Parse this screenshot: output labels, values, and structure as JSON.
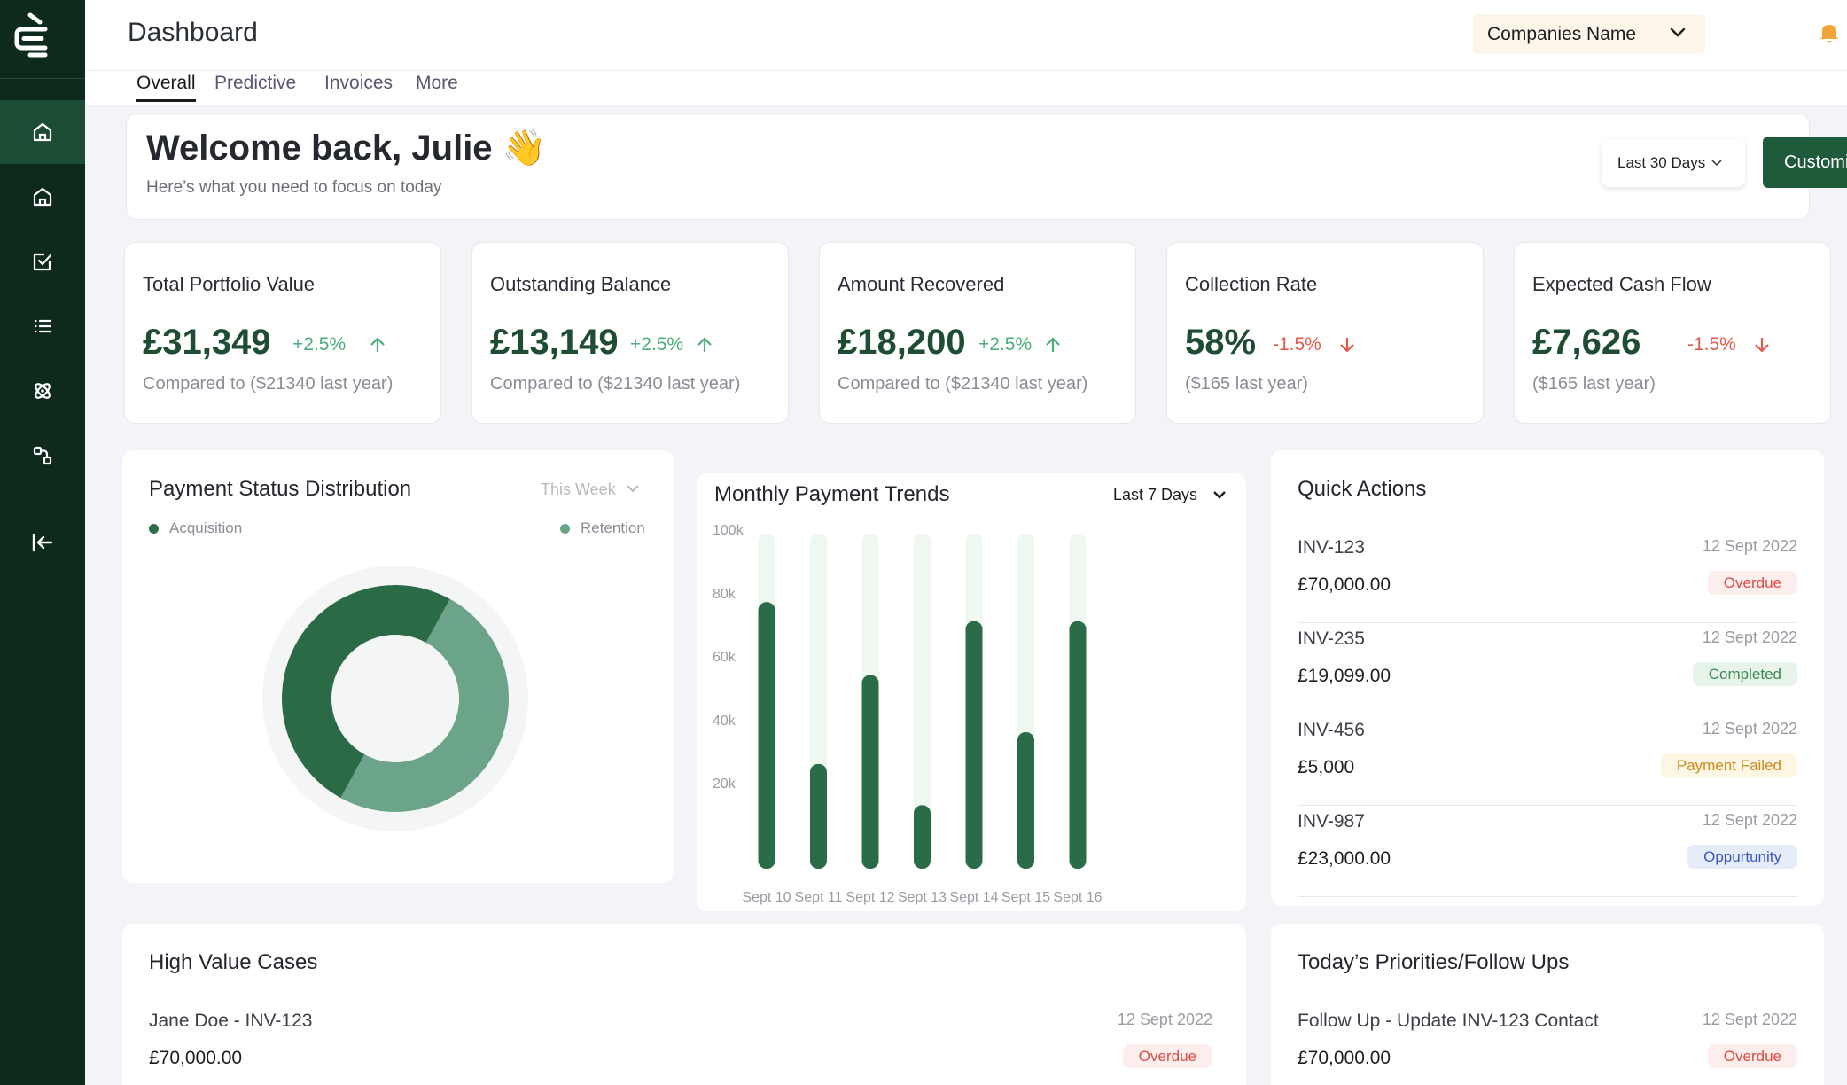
{
  "app": {
    "page_title": "Dashboard"
  },
  "header": {
    "company_select": "Companies Name"
  },
  "tabs": [
    {
      "label": "Overall",
      "active": true
    },
    {
      "label": "Predictive"
    },
    {
      "label": "Invoices"
    },
    {
      "label": "More"
    }
  ],
  "welcome": {
    "title": "Welcome back, Julie 👋",
    "subtitle": "Here’s what you need to focus on today",
    "range_button": "Last 30 Days",
    "customize_button": "Customize"
  },
  "kpis": [
    {
      "label": "Total Portfolio Value",
      "value": "£31,349",
      "change": "+2.5%",
      "direction": "up",
      "compare": "Compared to ($21340 last year)"
    },
    {
      "label": "Outstanding Balance",
      "value": "£13,149",
      "change": "+2.5%",
      "direction": "up",
      "compare": "Compared to ($21340 last year)"
    },
    {
      "label": "Amount Recovered",
      "value": "£18,200",
      "change": "+2.5%",
      "direction": "up",
      "compare": "Compared to ($21340 last year)"
    },
    {
      "label": "Collection Rate",
      "value": "58%",
      "change": "-1.5%",
      "direction": "down",
      "compare": "($165 last year)"
    },
    {
      "label": "Expected Cash Flow",
      "value": "£7,626",
      "change": "-1.5%",
      "direction": "down",
      "compare": "($165 last year)"
    }
  ],
  "payment_status": {
    "title": "Payment Status Distribution",
    "period": "This Week",
    "legend": [
      "Acquisition",
      "Retention"
    ],
    "series": [
      {
        "name": "Acquisition",
        "share": 0.5
      },
      {
        "name": "Retention",
        "share": 0.5
      }
    ]
  },
  "monthly_trends": {
    "title": "Monthly Payment Trends",
    "range": "Last 7 Days"
  },
  "chart_data": {
    "type": "bar",
    "categories": [
      "Sept 10",
      "Sept 11",
      "Sept 12",
      "Sept 13",
      "Sept 14",
      "Sept 15",
      "Sept 16"
    ],
    "values": [
      84,
      33,
      61,
      20,
      78,
      43,
      78
    ],
    "ytick_labels": [
      "100k",
      "80k",
      "60k",
      "40k",
      "20k"
    ],
    "ylim": [
      0,
      100
    ],
    "bar_color": "#2a6b48",
    "track_color": "#eef8f1"
  },
  "quick_actions": {
    "title": "Quick Actions",
    "items": [
      {
        "id": "INV-123",
        "date": "12 Sept 2022",
        "amount": "£70,000.00",
        "status": "Overdue",
        "status_kind": "overdue"
      },
      {
        "id": "INV-235",
        "date": "12 Sept 2022",
        "amount": "£19,099.00",
        "status": "Completed",
        "status_kind": "completed"
      },
      {
        "id": "INV-456",
        "date": "12 Sept 2022",
        "amount": "£5,000",
        "status": "Payment Failed",
        "status_kind": "failed"
      },
      {
        "id": "INV-987",
        "date": "12 Sept 2022",
        "amount": "£23,000.00",
        "status": "Oppurtunity",
        "status_kind": "opp"
      }
    ]
  },
  "high_value": {
    "title": "High Value Cases",
    "items": [
      {
        "id": "Jane Doe - INV-123",
        "date": "12 Sept 2022",
        "amount": "£70,000.00",
        "status": "Overdue"
      }
    ]
  },
  "priorities": {
    "title": "Today’s Priorities/Follow Ups",
    "items": [
      {
        "id": "Follow Up - Update INV-123 Contact",
        "date": "12 Sept 2022",
        "amount": "£70,000.00",
        "status": "Overdue"
      }
    ]
  },
  "colors": {
    "sidebar": "#0e2a1d",
    "accent": "#1f5a3b",
    "positive": "#4cae7a",
    "negative": "#e05a4e"
  },
  "icons": {
    "sidebar": [
      "home-icon",
      "home-icon",
      "check-square-icon",
      "list-icon",
      "atom-icon",
      "flow-icon",
      "collapse-icon"
    ],
    "header": [
      "chevron-down-icon",
      "bell-icon"
    ]
  }
}
